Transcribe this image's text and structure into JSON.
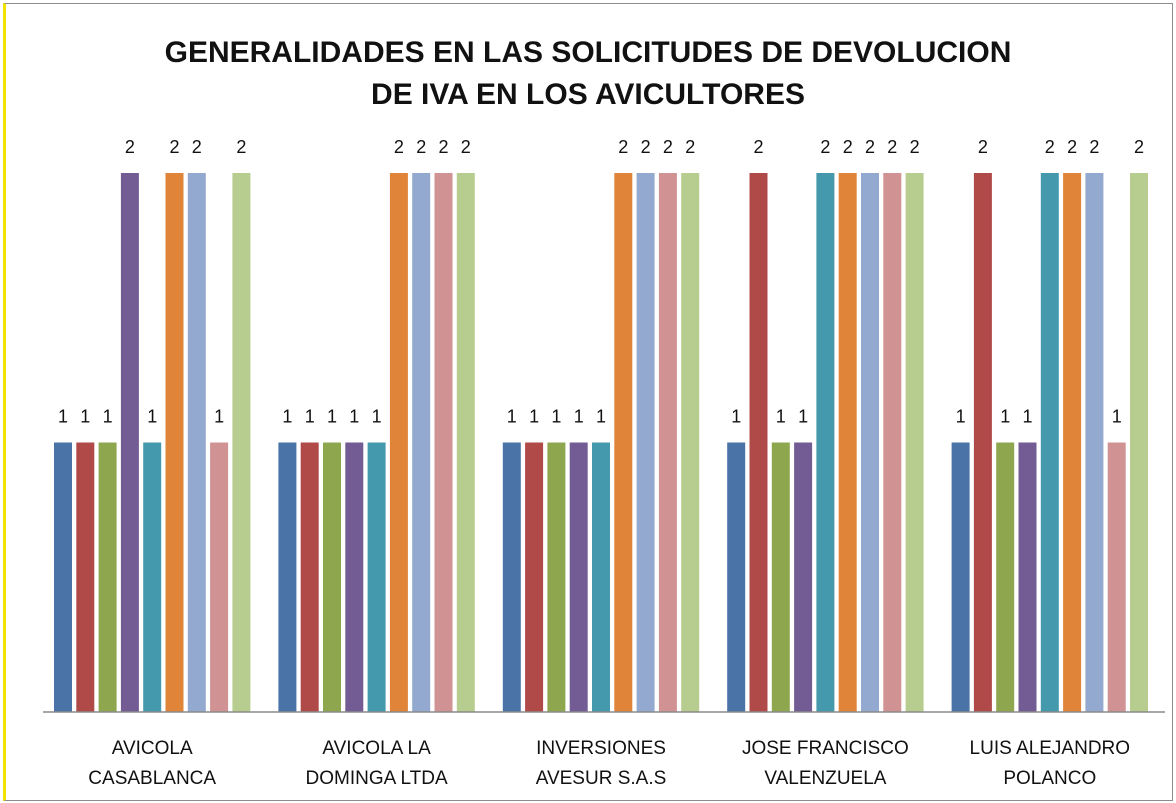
{
  "chart_data": {
    "type": "bar",
    "title": "GENERALIDADES EN LAS SOLICITUDES DE DEVOLUCION DE IVA EN LOS AVICULTORES",
    "categories": [
      "AVICOLA CASABLANCA",
      "AVICOLA LA DOMINGA LTDA",
      "INVERSIONES AVESUR S.A.S",
      "JOSE FRANCISCO VALENZUELA",
      "LUIS ALEJANDRO POLANCO"
    ],
    "series": [
      {
        "color": "#4a73a8",
        "values": [
          1,
          1,
          1,
          1,
          1
        ]
      },
      {
        "color": "#b04a48",
        "values": [
          1,
          1,
          1,
          2,
          2
        ]
      },
      {
        "color": "#8ea74e",
        "values": [
          1,
          1,
          1,
          1,
          1
        ]
      },
      {
        "color": "#735c94",
        "values": [
          2,
          1,
          1,
          1,
          1
        ]
      },
      {
        "color": "#4599ad",
        "values": [
          1,
          1,
          1,
          2,
          2
        ]
      },
      {
        "color": "#df8438",
        "values": [
          2,
          2,
          2,
          2,
          2
        ]
      },
      {
        "color": "#93a9cf",
        "values": [
          2,
          2,
          2,
          2,
          2
        ]
      },
      {
        "color": "#d09292",
        "values": [
          1,
          2,
          2,
          2,
          1
        ]
      },
      {
        "color": "#b7cd8f",
        "values": [
          2,
          2,
          2,
          2,
          2
        ]
      }
    ],
    "ylim": [
      0,
      2
    ]
  }
}
